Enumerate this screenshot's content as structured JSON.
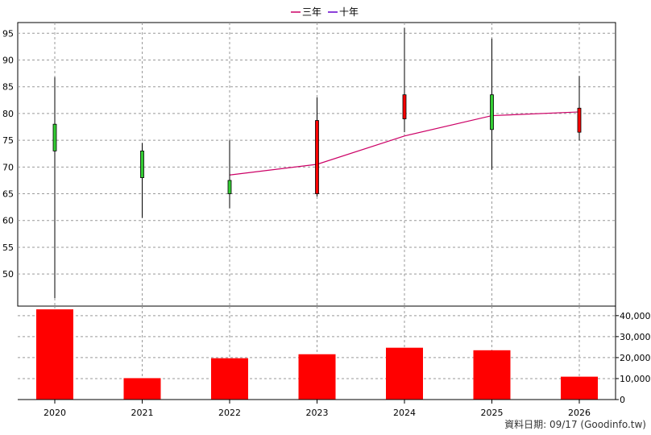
{
  "chart_data": {
    "type": "candlestick+bar",
    "legend": [
      {
        "name": "三年",
        "color": "#cc0066"
      },
      {
        "name": "十年",
        "color": "#6600cc"
      }
    ],
    "categories": [
      "2020",
      "2021",
      "2022",
      "2023",
      "2024",
      "2025",
      "2026"
    ],
    "price_axis": {
      "ylim": [
        44,
        97
      ],
      "ticks": [
        50,
        55,
        60,
        65,
        70,
        75,
        80,
        85,
        90,
        95
      ]
    },
    "candles": [
      {
        "x": "2020",
        "open": 73,
        "close": 78,
        "high": 86.8,
        "low": 45.5
      },
      {
        "x": "2021",
        "open": 68,
        "close": 73,
        "high": 74.5,
        "low": 60.5
      },
      {
        "x": "2022",
        "open": 65,
        "close": 67.5,
        "high": 75,
        "low": 62.3
      },
      {
        "x": "2023",
        "open": 78.7,
        "close": 65,
        "high": 83,
        "low": 64.5
      },
      {
        "x": "2024",
        "open": 83.5,
        "close": 79,
        "high": 96,
        "low": 76.5
      },
      {
        "x": "2025",
        "open": 77,
        "close": 83.5,
        "high": 94,
        "low": 69.5
      },
      {
        "x": "2026",
        "open": 81,
        "close": 76.5,
        "high": 87,
        "low": 75
      }
    ],
    "candle_colors": {
      "up": "#33cc33",
      "down": "#ff0000",
      "wick": "#000000"
    },
    "series": [
      {
        "name": "三年",
        "points": [
          {
            "x": "2022",
            "y": 68.5
          },
          {
            "x": "2023",
            "y": 70.5
          },
          {
            "x": "2024",
            "y": 75.8
          },
          {
            "x": "2025",
            "y": 79.6
          },
          {
            "x": "2026",
            "y": 80.3
          }
        ]
      }
    ],
    "volume_axis": {
      "ylim": [
        0,
        43000
      ],
      "ticks": [
        0,
        10000,
        20000,
        30000,
        40000
      ],
      "tick_labels": [
        "0",
        "10,000",
        "20,000",
        "30,000",
        "40,000"
      ]
    },
    "volume": [
      43000,
      10200,
      19700,
      21600,
      24700,
      23500,
      10900
    ],
    "volume_color": "#ff0000",
    "grid": true
  },
  "footer": {
    "text": "資料日期: 09/17  (Goodinfo.tw)"
  }
}
